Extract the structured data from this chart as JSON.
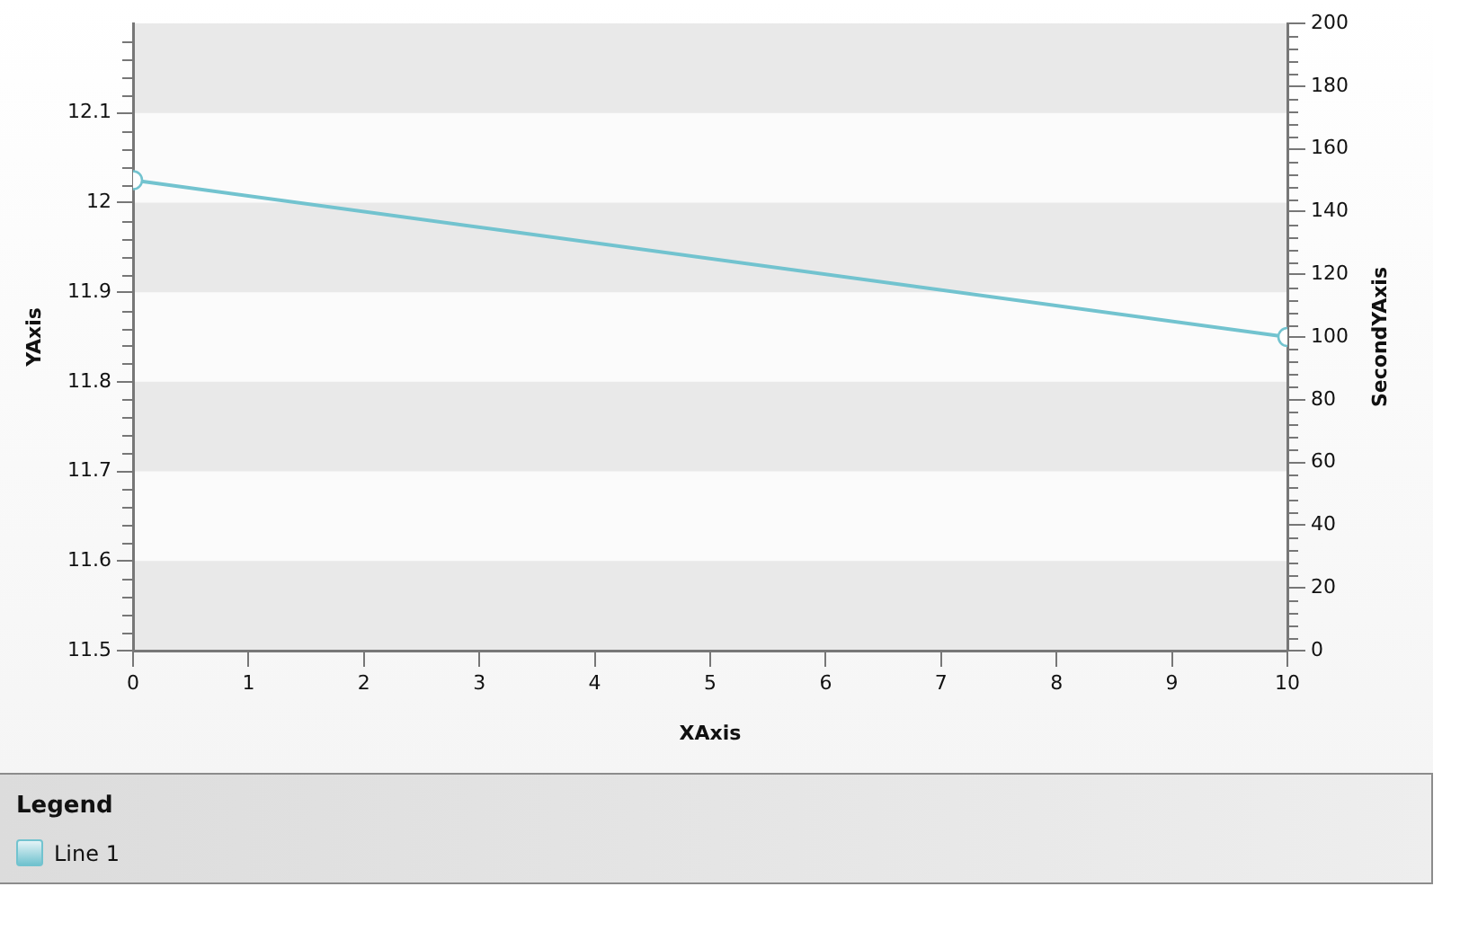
{
  "chart_data": {
    "type": "line",
    "xlabel": "XAxis",
    "ylabel": "YAxis",
    "y2label": "SecondYAxis",
    "legend_title": "Legend",
    "x": [
      0,
      10
    ],
    "series": [
      {
        "name": "Line 1",
        "color": "#72c3cf",
        "values": [
          12.025,
          11.85
        ]
      }
    ],
    "xlim": [
      0,
      10
    ],
    "xticks": [
      0,
      1,
      2,
      3,
      4,
      5,
      6,
      7,
      8,
      9,
      10
    ],
    "ylim": [
      11.5,
      12.2
    ],
    "yticks": [
      11.5,
      {
        "value": 11.52,
        "label": null
      },
      {
        "value": 11.54,
        "label": null
      },
      {
        "value": 11.56,
        "label": null
      },
      {
        "value": 11.58,
        "label": null
      },
      11.6,
      {
        "value": 11.62,
        "label": null
      },
      {
        "value": 11.64,
        "label": null
      },
      {
        "value": 11.66,
        "label": null
      },
      {
        "value": 11.68,
        "label": null
      },
      11.7,
      {
        "value": 11.72,
        "label": null
      },
      {
        "value": 11.74,
        "label": null
      },
      {
        "value": 11.76,
        "label": null
      },
      {
        "value": 11.78,
        "label": null
      },
      11.8,
      {
        "value": 11.82,
        "label": null
      },
      {
        "value": 11.84,
        "label": null
      },
      {
        "value": 11.86,
        "label": null
      },
      {
        "value": 11.88,
        "label": null
      },
      11.9,
      {
        "value": 11.92,
        "label": null
      },
      {
        "value": 11.94,
        "label": null
      },
      {
        "value": 11.96,
        "label": null
      },
      {
        "value": 11.98,
        "label": null
      },
      12,
      {
        "value": 12.02,
        "label": null
      },
      {
        "value": 12.04,
        "label": null
      },
      {
        "value": 12.06,
        "label": null
      },
      {
        "value": 12.08,
        "label": null
      },
      12.1,
      {
        "value": 12.12,
        "label": null
      },
      {
        "value": 12.14,
        "label": null
      },
      {
        "value": 12.16,
        "label": null
      },
      {
        "value": 12.18,
        "label": null
      }
    ],
    "y2lim": [
      0,
      200
    ],
    "y2ticks": [
      0,
      {
        "value": 4,
        "label": null
      },
      {
        "value": 8,
        "label": null
      },
      {
        "value": 12,
        "label": null
      },
      {
        "value": 16,
        "label": null
      },
      20,
      {
        "value": 24,
        "label": null
      },
      {
        "value": 28,
        "label": null
      },
      {
        "value": 32,
        "label": null
      },
      {
        "value": 36,
        "label": null
      },
      40,
      {
        "value": 44,
        "label": null
      },
      {
        "value": 48,
        "label": null
      },
      {
        "value": 52,
        "label": null
      },
      {
        "value": 56,
        "label": null
      },
      60,
      {
        "value": 64,
        "label": null
      },
      {
        "value": 68,
        "label": null
      },
      {
        "value": 72,
        "label": null
      },
      {
        "value": 76,
        "label": null
      },
      80,
      {
        "value": 84,
        "label": null
      },
      {
        "value": 88,
        "label": null
      },
      {
        "value": 92,
        "label": null
      },
      {
        "value": 96,
        "label": null
      },
      100,
      {
        "value": 104,
        "label": null
      },
      {
        "value": 108,
        "label": null
      },
      {
        "value": 112,
        "label": null
      },
      {
        "value": 116,
        "label": null
      },
      120,
      {
        "value": 124,
        "label": null
      },
      {
        "value": 128,
        "label": null
      },
      {
        "value": 132,
        "label": null
      },
      {
        "value": 136,
        "label": null
      },
      140,
      {
        "value": 144,
        "label": null
      },
      {
        "value": 148,
        "label": null
      },
      {
        "value": 152,
        "label": null
      },
      {
        "value": 156,
        "label": null
      },
      160,
      {
        "value": 164,
        "label": null
      },
      {
        "value": 168,
        "label": null
      },
      {
        "value": 172,
        "label": null
      },
      {
        "value": 176,
        "label": null
      },
      180,
      {
        "value": 184,
        "label": null
      },
      {
        "value": 188,
        "label": null
      },
      {
        "value": 192,
        "label": null
      },
      {
        "value": 196,
        "label": null
      },
      200
    ],
    "bands": [
      {
        "axis": "y",
        "from": 11.5,
        "to": 11.6,
        "color": "#e9e9e9"
      },
      {
        "axis": "y",
        "from": 11.7,
        "to": 11.8,
        "color": "#e9e9e9"
      },
      {
        "axis": "y",
        "from": 11.9,
        "to": 12,
        "color": "#e9e9e9"
      },
      {
        "axis": "y",
        "from": 12.1,
        "to": 12.2,
        "color": "#e9e9e9"
      }
    ],
    "legend": "bottom",
    "marker": "circle"
  }
}
